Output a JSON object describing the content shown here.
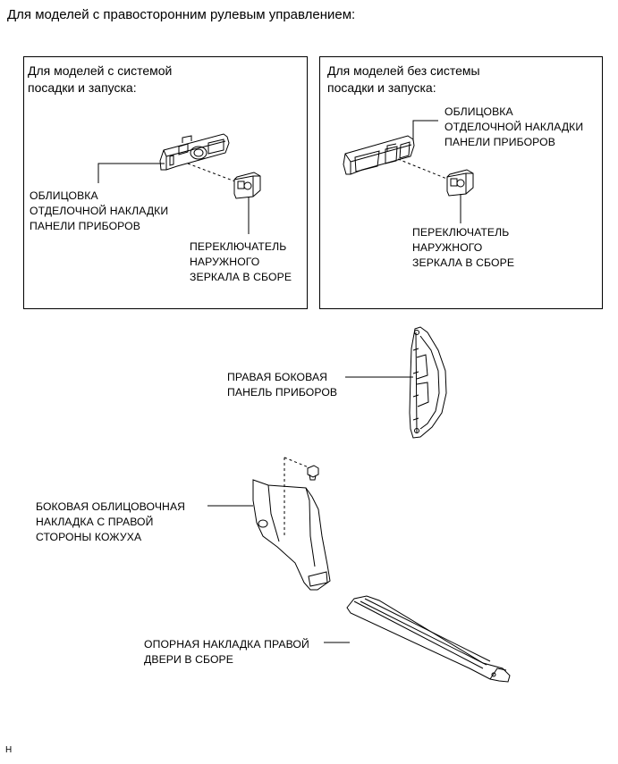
{
  "heading": "Для моделей с правосторонним рулевым управлением:",
  "box_left": {
    "title": [
      "Для моделей с системой",
      "посадки и запуска:"
    ],
    "part_trim": [
      "ОБЛИЦОВКА",
      "ОТДЕЛОЧНОЙ НАКЛАДКИ",
      "ПАНЕЛИ ПРИБОРОВ"
    ],
    "part_switch": [
      "ПЕРЕКЛЮЧАТЕЛЬ",
      "НАРУЖНОГО",
      "ЗЕРКАЛА В СБОРЕ"
    ]
  },
  "box_right": {
    "title": [
      "Для моделей без системы",
      "посадки и запуска:"
    ],
    "part_trim": [
      "ОБЛИЦОВКА",
      "ОТДЕЛОЧНОЙ НАКЛАДКИ",
      "ПАНЕЛИ ПРИБОРОВ"
    ],
    "part_switch": [
      "ПЕРЕКЛЮЧАТЕЛЬ",
      "НАРУЖНОГО",
      "ЗЕРКАЛА В СБОРЕ"
    ]
  },
  "parts": {
    "side_panel": [
      "ПРАВАЯ БОКОВАЯ",
      "ПАНЕЛЬ ПРИБОРОВ"
    ],
    "cowl_side_trim": [
      "БОКОВАЯ ОБЛИЦОВОЧНАЯ",
      "НАКЛАДКА С ПРАВОЙ",
      "СТОРОНЫ КОЖУХА"
    ],
    "door_scuff_plate": [
      "ОПОРНАЯ НАКЛАДКА ПРАВОЙ",
      "ДВЕРИ В СБОРЕ"
    ]
  },
  "footer_code": "H"
}
